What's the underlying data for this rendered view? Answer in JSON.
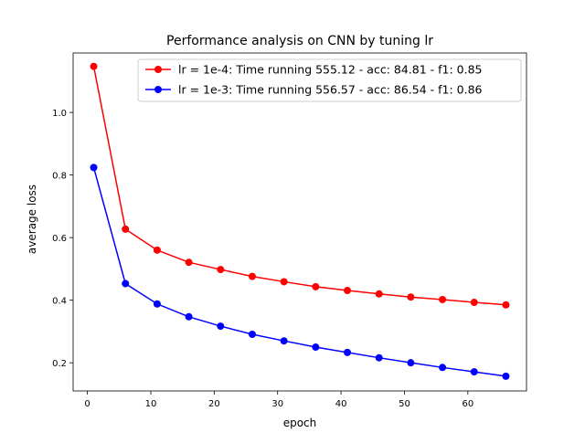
{
  "chart_data": {
    "type": "line",
    "title": "Performance analysis on CNN by tuning lr",
    "xlabel": "epoch",
    "ylabel": "average loss",
    "xlim": [
      -2.25,
      69.25
    ],
    "ylim": [
      0.11,
      1.19
    ],
    "xticks": [
      0,
      10,
      20,
      30,
      40,
      50,
      60
    ],
    "yticks": [
      0.2,
      0.4,
      0.6,
      0.8,
      1.0
    ],
    "ytick_labels": [
      "0.2",
      "0.4",
      "0.6",
      "0.8",
      "1.0"
    ],
    "grid": false,
    "legend_position": "upper-right",
    "x": [
      1,
      6,
      11,
      16,
      21,
      26,
      31,
      36,
      41,
      46,
      51,
      56,
      61,
      66
    ],
    "series": [
      {
        "name": "lr = 1e-4: Time running 555.12 - acc: 84.81 - f1: 0.85",
        "color": "#ff0000",
        "marker": "circle",
        "values": [
          1.147,
          0.627,
          0.56,
          0.521,
          0.498,
          0.476,
          0.459,
          0.443,
          0.431,
          0.42,
          0.41,
          0.402,
          0.393,
          0.385
        ]
      },
      {
        "name": "lr = 1e-3: Time running 556.57 - acc: 86.54 - f1: 0.86",
        "color": "#0000ff",
        "marker": "circle",
        "values": [
          0.824,
          0.453,
          0.388,
          0.347,
          0.317,
          0.291,
          0.27,
          0.25,
          0.233,
          0.216,
          0.2,
          0.185,
          0.171,
          0.157
        ]
      }
    ]
  }
}
